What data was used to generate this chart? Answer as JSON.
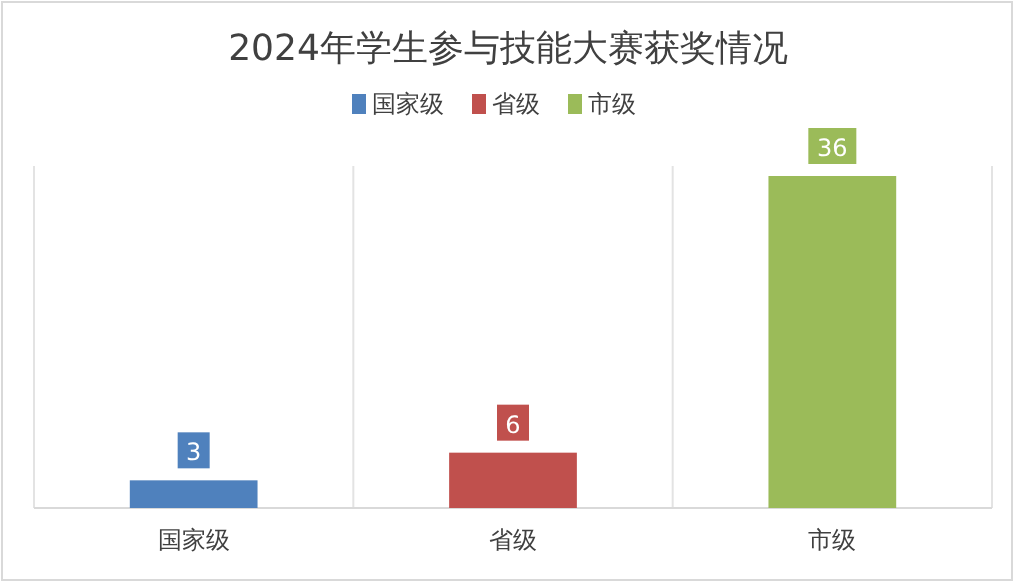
{
  "chart_data": {
    "type": "bar",
    "title": "2024年学生参与技能大赛获奖情况",
    "categories": [
      "国家级",
      "省级",
      "市级"
    ],
    "series": [
      {
        "name": "国家级",
        "color": "#4f81bd",
        "values": [
          3,
          null,
          null
        ]
      },
      {
        "name": "省级",
        "color": "#c0504d",
        "values": [
          null,
          6,
          null
        ]
      },
      {
        "name": "市级",
        "color": "#9bbb59",
        "values": [
          null,
          null,
          36
        ]
      }
    ],
    "data_labels": true,
    "grid": "x",
    "legend": "top"
  }
}
